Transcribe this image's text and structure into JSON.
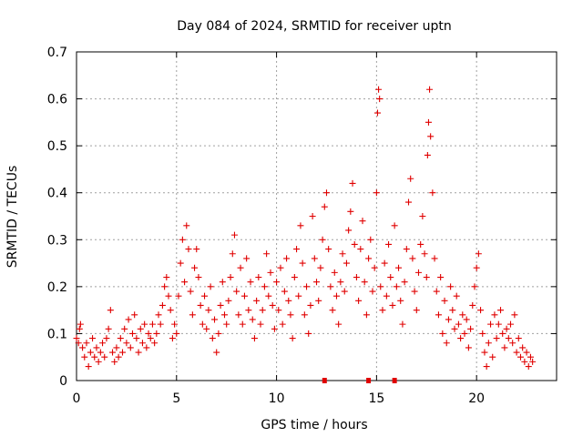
{
  "chart_data": {
    "type": "scatter",
    "title": "Day 084 of 2024, SRMTID for receiver uptn",
    "xlabel": "GPS time / hours",
    "ylabel": "SRMTID / TECUs",
    "xlim": [
      0,
      24
    ],
    "ylim": [
      0,
      0.7
    ],
    "x_ticks": [
      0,
      5,
      10,
      15,
      20
    ],
    "y_ticks": [
      0,
      0.1,
      0.2,
      0.3,
      0.4,
      0.5,
      0.6,
      0.7
    ],
    "x_tick_labels": [
      "0",
      "5",
      "10",
      "15",
      "20"
    ],
    "y_tick_labels": [
      "0",
      "0.1",
      "0.2",
      "0.3",
      "0.4",
      "0.5",
      "0.6",
      "0.7"
    ],
    "grid": true,
    "marker": "+",
    "series": [
      {
        "name": "SRMTID",
        "color": "#e00000",
        "points": [
          [
            0.0,
            0.09
          ],
          [
            0.1,
            0.08
          ],
          [
            0.15,
            0.11
          ],
          [
            0.2,
            0.12
          ],
          [
            0.3,
            0.07
          ],
          [
            0.4,
            0.05
          ],
          [
            0.5,
            0.08
          ],
          [
            0.6,
            0.03
          ],
          [
            0.7,
            0.06
          ],
          [
            0.8,
            0.09
          ],
          [
            0.9,
            0.05
          ],
          [
            1.0,
            0.07
          ],
          [
            1.1,
            0.04
          ],
          [
            1.2,
            0.06
          ],
          [
            1.3,
            0.08
          ],
          [
            1.4,
            0.05
          ],
          [
            1.5,
            0.09
          ],
          [
            1.6,
            0.11
          ],
          [
            1.7,
            0.15
          ],
          [
            1.8,
            0.06
          ],
          [
            1.9,
            0.04
          ],
          [
            2.0,
            0.07
          ],
          [
            2.1,
            0.05
          ],
          [
            2.2,
            0.09
          ],
          [
            2.3,
            0.06
          ],
          [
            2.4,
            0.11
          ],
          [
            2.5,
            0.08
          ],
          [
            2.6,
            0.13
          ],
          [
            2.7,
            0.07
          ],
          [
            2.8,
            0.1
          ],
          [
            2.9,
            0.14
          ],
          [
            3.0,
            0.09
          ],
          [
            3.1,
            0.06
          ],
          [
            3.2,
            0.11
          ],
          [
            3.3,
            0.08
          ],
          [
            3.4,
            0.12
          ],
          [
            3.5,
            0.07
          ],
          [
            3.6,
            0.1
          ],
          [
            3.7,
            0.09
          ],
          [
            3.8,
            0.12
          ],
          [
            3.9,
            0.08
          ],
          [
            4.0,
            0.1
          ],
          [
            4.1,
            0.14
          ],
          [
            4.2,
            0.12
          ],
          [
            4.3,
            0.16
          ],
          [
            4.4,
            0.2
          ],
          [
            4.5,
            0.22
          ],
          [
            4.6,
            0.18
          ],
          [
            4.7,
            0.15
          ],
          [
            4.8,
            0.09
          ],
          [
            4.9,
            0.12
          ],
          [
            5.0,
            0.1
          ],
          [
            5.1,
            0.18
          ],
          [
            5.2,
            0.25
          ],
          [
            5.3,
            0.3
          ],
          [
            5.4,
            0.21
          ],
          [
            5.5,
            0.33
          ],
          [
            5.6,
            0.28
          ],
          [
            5.7,
            0.19
          ],
          [
            5.8,
            0.14
          ],
          [
            5.9,
            0.24
          ],
          [
            6.0,
            0.28
          ],
          [
            6.1,
            0.22
          ],
          [
            6.2,
            0.16
          ],
          [
            6.3,
            0.12
          ],
          [
            6.4,
            0.18
          ],
          [
            6.5,
            0.11
          ],
          [
            6.6,
            0.15
          ],
          [
            6.7,
            0.2
          ],
          [
            6.8,
            0.09
          ],
          [
            6.9,
            0.13
          ],
          [
            7.0,
            0.06
          ],
          [
            7.1,
            0.1
          ],
          [
            7.2,
            0.16
          ],
          [
            7.3,
            0.21
          ],
          [
            7.4,
            0.14
          ],
          [
            7.5,
            0.12
          ],
          [
            7.6,
            0.17
          ],
          [
            7.7,
            0.22
          ],
          [
            7.8,
            0.27
          ],
          [
            7.9,
            0.31
          ],
          [
            8.0,
            0.19
          ],
          [
            8.1,
            0.14
          ],
          [
            8.2,
            0.24
          ],
          [
            8.3,
            0.12
          ],
          [
            8.4,
            0.18
          ],
          [
            8.5,
            0.26
          ],
          [
            8.6,
            0.15
          ],
          [
            8.7,
            0.21
          ],
          [
            8.8,
            0.13
          ],
          [
            8.9,
            0.09
          ],
          [
            9.0,
            0.17
          ],
          [
            9.1,
            0.22
          ],
          [
            9.2,
            0.12
          ],
          [
            9.3,
            0.15
          ],
          [
            9.4,
            0.2
          ],
          [
            9.5,
            0.27
          ],
          [
            9.6,
            0.18
          ],
          [
            9.7,
            0.23
          ],
          [
            9.8,
            0.16
          ],
          [
            9.9,
            0.11
          ],
          [
            10.0,
            0.21
          ],
          [
            10.1,
            0.15
          ],
          [
            10.2,
            0.24
          ],
          [
            10.3,
            0.12
          ],
          [
            10.4,
            0.19
          ],
          [
            10.5,
            0.26
          ],
          [
            10.6,
            0.17
          ],
          [
            10.7,
            0.14
          ],
          [
            10.8,
            0.09
          ],
          [
            10.9,
            0.22
          ],
          [
            11.0,
            0.28
          ],
          [
            11.1,
            0.18
          ],
          [
            11.2,
            0.33
          ],
          [
            11.3,
            0.25
          ],
          [
            11.4,
            0.14
          ],
          [
            11.5,
            0.2
          ],
          [
            11.6,
            0.1
          ],
          [
            11.7,
            0.16
          ],
          [
            11.8,
            0.35
          ],
          [
            11.9,
            0.26
          ],
          [
            12.0,
            0.21
          ],
          [
            12.1,
            0.17
          ],
          [
            12.2,
            0.24
          ],
          [
            12.3,
            0.3
          ],
          [
            12.4,
            0.37
          ],
          [
            12.5,
            0.4
          ],
          [
            12.6,
            0.28
          ],
          [
            12.7,
            0.2
          ],
          [
            12.8,
            0.15
          ],
          [
            12.9,
            0.23
          ],
          [
            13.0,
            0.18
          ],
          [
            13.1,
            0.12
          ],
          [
            13.2,
            0.21
          ],
          [
            13.3,
            0.27
          ],
          [
            13.4,
            0.19
          ],
          [
            13.5,
            0.25
          ],
          [
            13.6,
            0.32
          ],
          [
            13.7,
            0.36
          ],
          [
            13.8,
            0.42
          ],
          [
            13.9,
            0.29
          ],
          [
            14.0,
            0.22
          ],
          [
            14.1,
            0.17
          ],
          [
            14.2,
            0.28
          ],
          [
            14.3,
            0.34
          ],
          [
            14.4,
            0.21
          ],
          [
            14.5,
            0.14
          ],
          [
            14.6,
            0.26
          ],
          [
            14.7,
            0.3
          ],
          [
            14.8,
            0.19
          ],
          [
            14.9,
            0.24
          ],
          [
            15.0,
            0.4
          ],
          [
            15.05,
            0.57
          ],
          [
            15.1,
            0.62
          ],
          [
            15.15,
            0.6
          ],
          [
            15.2,
            0.2
          ],
          [
            15.3,
            0.15
          ],
          [
            15.4,
            0.25
          ],
          [
            15.5,
            0.18
          ],
          [
            15.6,
            0.29
          ],
          [
            15.7,
            0.22
          ],
          [
            15.8,
            0.16
          ],
          [
            15.9,
            0.33
          ],
          [
            16.0,
            0.2
          ],
          [
            16.1,
            0.24
          ],
          [
            16.2,
            0.17
          ],
          [
            16.3,
            0.12
          ],
          [
            16.4,
            0.21
          ],
          [
            16.5,
            0.28
          ],
          [
            16.6,
            0.38
          ],
          [
            16.7,
            0.43
          ],
          [
            16.8,
            0.26
          ],
          [
            16.9,
            0.19
          ],
          [
            17.0,
            0.15
          ],
          [
            17.1,
            0.23
          ],
          [
            17.2,
            0.29
          ],
          [
            17.3,
            0.35
          ],
          [
            17.4,
            0.27
          ],
          [
            17.5,
            0.22
          ],
          [
            17.55,
            0.48
          ],
          [
            17.6,
            0.55
          ],
          [
            17.65,
            0.62
          ],
          [
            17.7,
            0.52
          ],
          [
            17.8,
            0.4
          ],
          [
            17.9,
            0.26
          ],
          [
            18.0,
            0.19
          ],
          [
            18.1,
            0.14
          ],
          [
            18.2,
            0.22
          ],
          [
            18.3,
            0.1
          ],
          [
            18.4,
            0.17
          ],
          [
            18.5,
            0.08
          ],
          [
            18.6,
            0.13
          ],
          [
            18.7,
            0.2
          ],
          [
            18.8,
            0.15
          ],
          [
            18.9,
            0.11
          ],
          [
            19.0,
            0.18
          ],
          [
            19.1,
            0.12
          ],
          [
            19.2,
            0.09
          ],
          [
            19.3,
            0.14
          ],
          [
            19.4,
            0.1
          ],
          [
            19.5,
            0.13
          ],
          [
            19.6,
            0.07
          ],
          [
            19.7,
            0.11
          ],
          [
            19.8,
            0.16
          ],
          [
            19.9,
            0.2
          ],
          [
            20.0,
            0.24
          ],
          [
            20.1,
            0.27
          ],
          [
            20.2,
            0.15
          ],
          [
            20.3,
            0.1
          ],
          [
            20.4,
            0.06
          ],
          [
            20.5,
            0.03
          ],
          [
            20.6,
            0.08
          ],
          [
            20.7,
            0.12
          ],
          [
            20.8,
            0.05
          ],
          [
            20.9,
            0.14
          ],
          [
            21.0,
            0.09
          ],
          [
            21.1,
            0.12
          ],
          [
            21.2,
            0.15
          ],
          [
            21.3,
            0.1
          ],
          [
            21.4,
            0.07
          ],
          [
            21.5,
            0.11
          ],
          [
            21.6,
            0.09
          ],
          [
            21.7,
            0.12
          ],
          [
            21.8,
            0.08
          ],
          [
            21.9,
            0.14
          ],
          [
            22.0,
            0.06
          ],
          [
            22.1,
            0.09
          ],
          [
            22.2,
            0.05
          ],
          [
            22.3,
            0.07
          ],
          [
            22.4,
            0.04
          ],
          [
            22.5,
            0.06
          ],
          [
            22.6,
            0.03
          ],
          [
            22.7,
            0.05
          ],
          [
            22.8,
            0.04
          ]
        ]
      },
      {
        "name": "gaps",
        "color": "#e00000",
        "marker": "square",
        "points": [
          [
            12.4,
            0
          ],
          [
            14.6,
            0
          ],
          [
            15.9,
            0
          ]
        ]
      }
    ]
  }
}
